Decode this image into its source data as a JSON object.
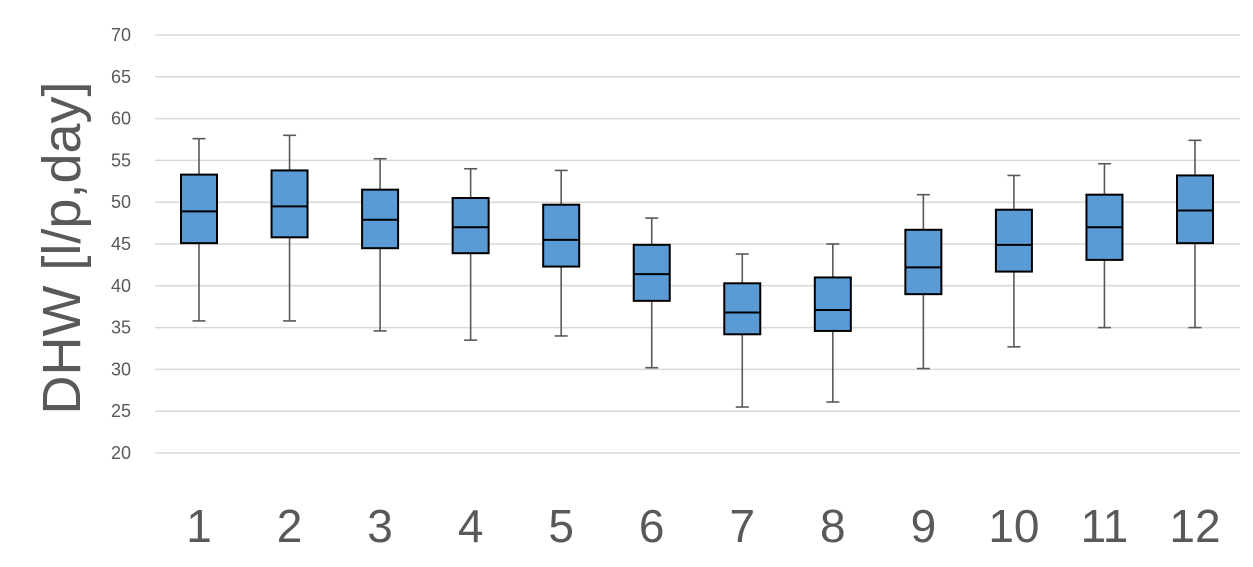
{
  "chart_data": {
    "type": "box",
    "title": "",
    "xlabel": "",
    "ylabel": "DHW [l/p,day]",
    "ylim": [
      20,
      70
    ],
    "yticks": [
      "20",
      "25",
      "30",
      "35",
      "40",
      "45",
      "50",
      "55",
      "60",
      "65",
      "70"
    ],
    "grid": true,
    "legend": "none",
    "colors": {
      "box_fill": "#5b9bd5",
      "box_stroke": "#000000",
      "whisker": "#595959",
      "grid": "#d9d9d9",
      "text": "#595959"
    },
    "categories": [
      "1",
      "2",
      "3",
      "4",
      "5",
      "6",
      "7",
      "8",
      "9",
      "10",
      "11",
      "12"
    ],
    "boxes": [
      {
        "category": "1",
        "min": 35.8,
        "q1": 45.1,
        "median": 48.9,
        "q3": 53.3,
        "max": 57.6
      },
      {
        "category": "2",
        "min": 35.8,
        "q1": 45.8,
        "median": 49.5,
        "q3": 53.8,
        "max": 58.0
      },
      {
        "category": "3",
        "min": 34.6,
        "q1": 44.5,
        "median": 47.9,
        "q3": 51.5,
        "max": 55.2
      },
      {
        "category": "4",
        "min": 33.5,
        "q1": 43.9,
        "median": 47.0,
        "q3": 50.5,
        "max": 54.0
      },
      {
        "category": "5",
        "min": 34.0,
        "q1": 42.3,
        "median": 45.5,
        "q3": 49.7,
        "max": 53.8
      },
      {
        "category": "6",
        "min": 30.2,
        "q1": 38.2,
        "median": 41.4,
        "q3": 44.9,
        "max": 48.1
      },
      {
        "category": "7",
        "min": 25.5,
        "q1": 34.2,
        "median": 36.8,
        "q3": 40.3,
        "max": 43.8
      },
      {
        "category": "8",
        "min": 26.1,
        "q1": 34.6,
        "median": 37.1,
        "q3": 41.0,
        "max": 45.0
      },
      {
        "category": "9",
        "min": 30.1,
        "q1": 39.0,
        "median": 42.2,
        "q3": 46.7,
        "max": 50.9
      },
      {
        "category": "10",
        "min": 32.7,
        "q1": 41.7,
        "median": 44.9,
        "q3": 49.1,
        "max": 53.2
      },
      {
        "category": "11",
        "min": 35.0,
        "q1": 43.1,
        "median": 47.0,
        "q3": 50.9,
        "max": 54.6
      },
      {
        "category": "12",
        "min": 35.0,
        "q1": 45.1,
        "median": 49.0,
        "q3": 53.2,
        "max": 57.4
      }
    ]
  }
}
